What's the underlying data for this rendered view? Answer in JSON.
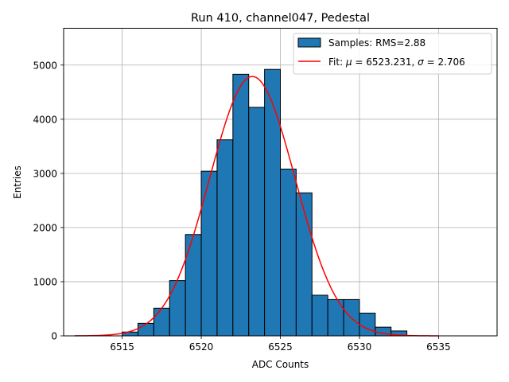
{
  "chart_data": {
    "type": "bar",
    "title": "Run 410, channel047, Pedestal",
    "xlabel": "ADC Counts",
    "ylabel": "Entries",
    "xlim": [
      6511.3,
      6538.7
    ],
    "ylim": [
      0,
      5680
    ],
    "xticks": [
      6515,
      6520,
      6525,
      6530,
      6535
    ],
    "yticks": [
      0,
      1000,
      2000,
      3000,
      4000,
      5000
    ],
    "grid": true,
    "legend_position": "top-right",
    "histogram": {
      "name": "Samples: RMS=2.88",
      "color": "#1f77b4",
      "bin_edges": [
        6514,
        6515,
        6516,
        6517,
        6518,
        6519,
        6520,
        6521,
        6522,
        6523,
        6524,
        6525,
        6526,
        6527,
        6528,
        6529,
        6530,
        6531,
        6532,
        6533
      ],
      "counts": [
        0,
        70,
        230,
        510,
        1020,
        1870,
        3040,
        3620,
        4830,
        4220,
        4920,
        3080,
        2640,
        750,
        670,
        670,
        420,
        160,
        90
      ]
    },
    "fit": {
      "name": "Fit: μ = 6523.231, σ = 2.706",
      "legend_prefix": "Fit: ",
      "mu_symbol": "μ",
      "sigma_symbol": "σ",
      "mu_text": " = 6523.231, ",
      "sigma_text": " = 2.706",
      "mu": 6523.231,
      "sigma": 2.706,
      "peak": 4790,
      "x_start": 6512,
      "x_end": 6535,
      "color": "#ff0000"
    }
  }
}
